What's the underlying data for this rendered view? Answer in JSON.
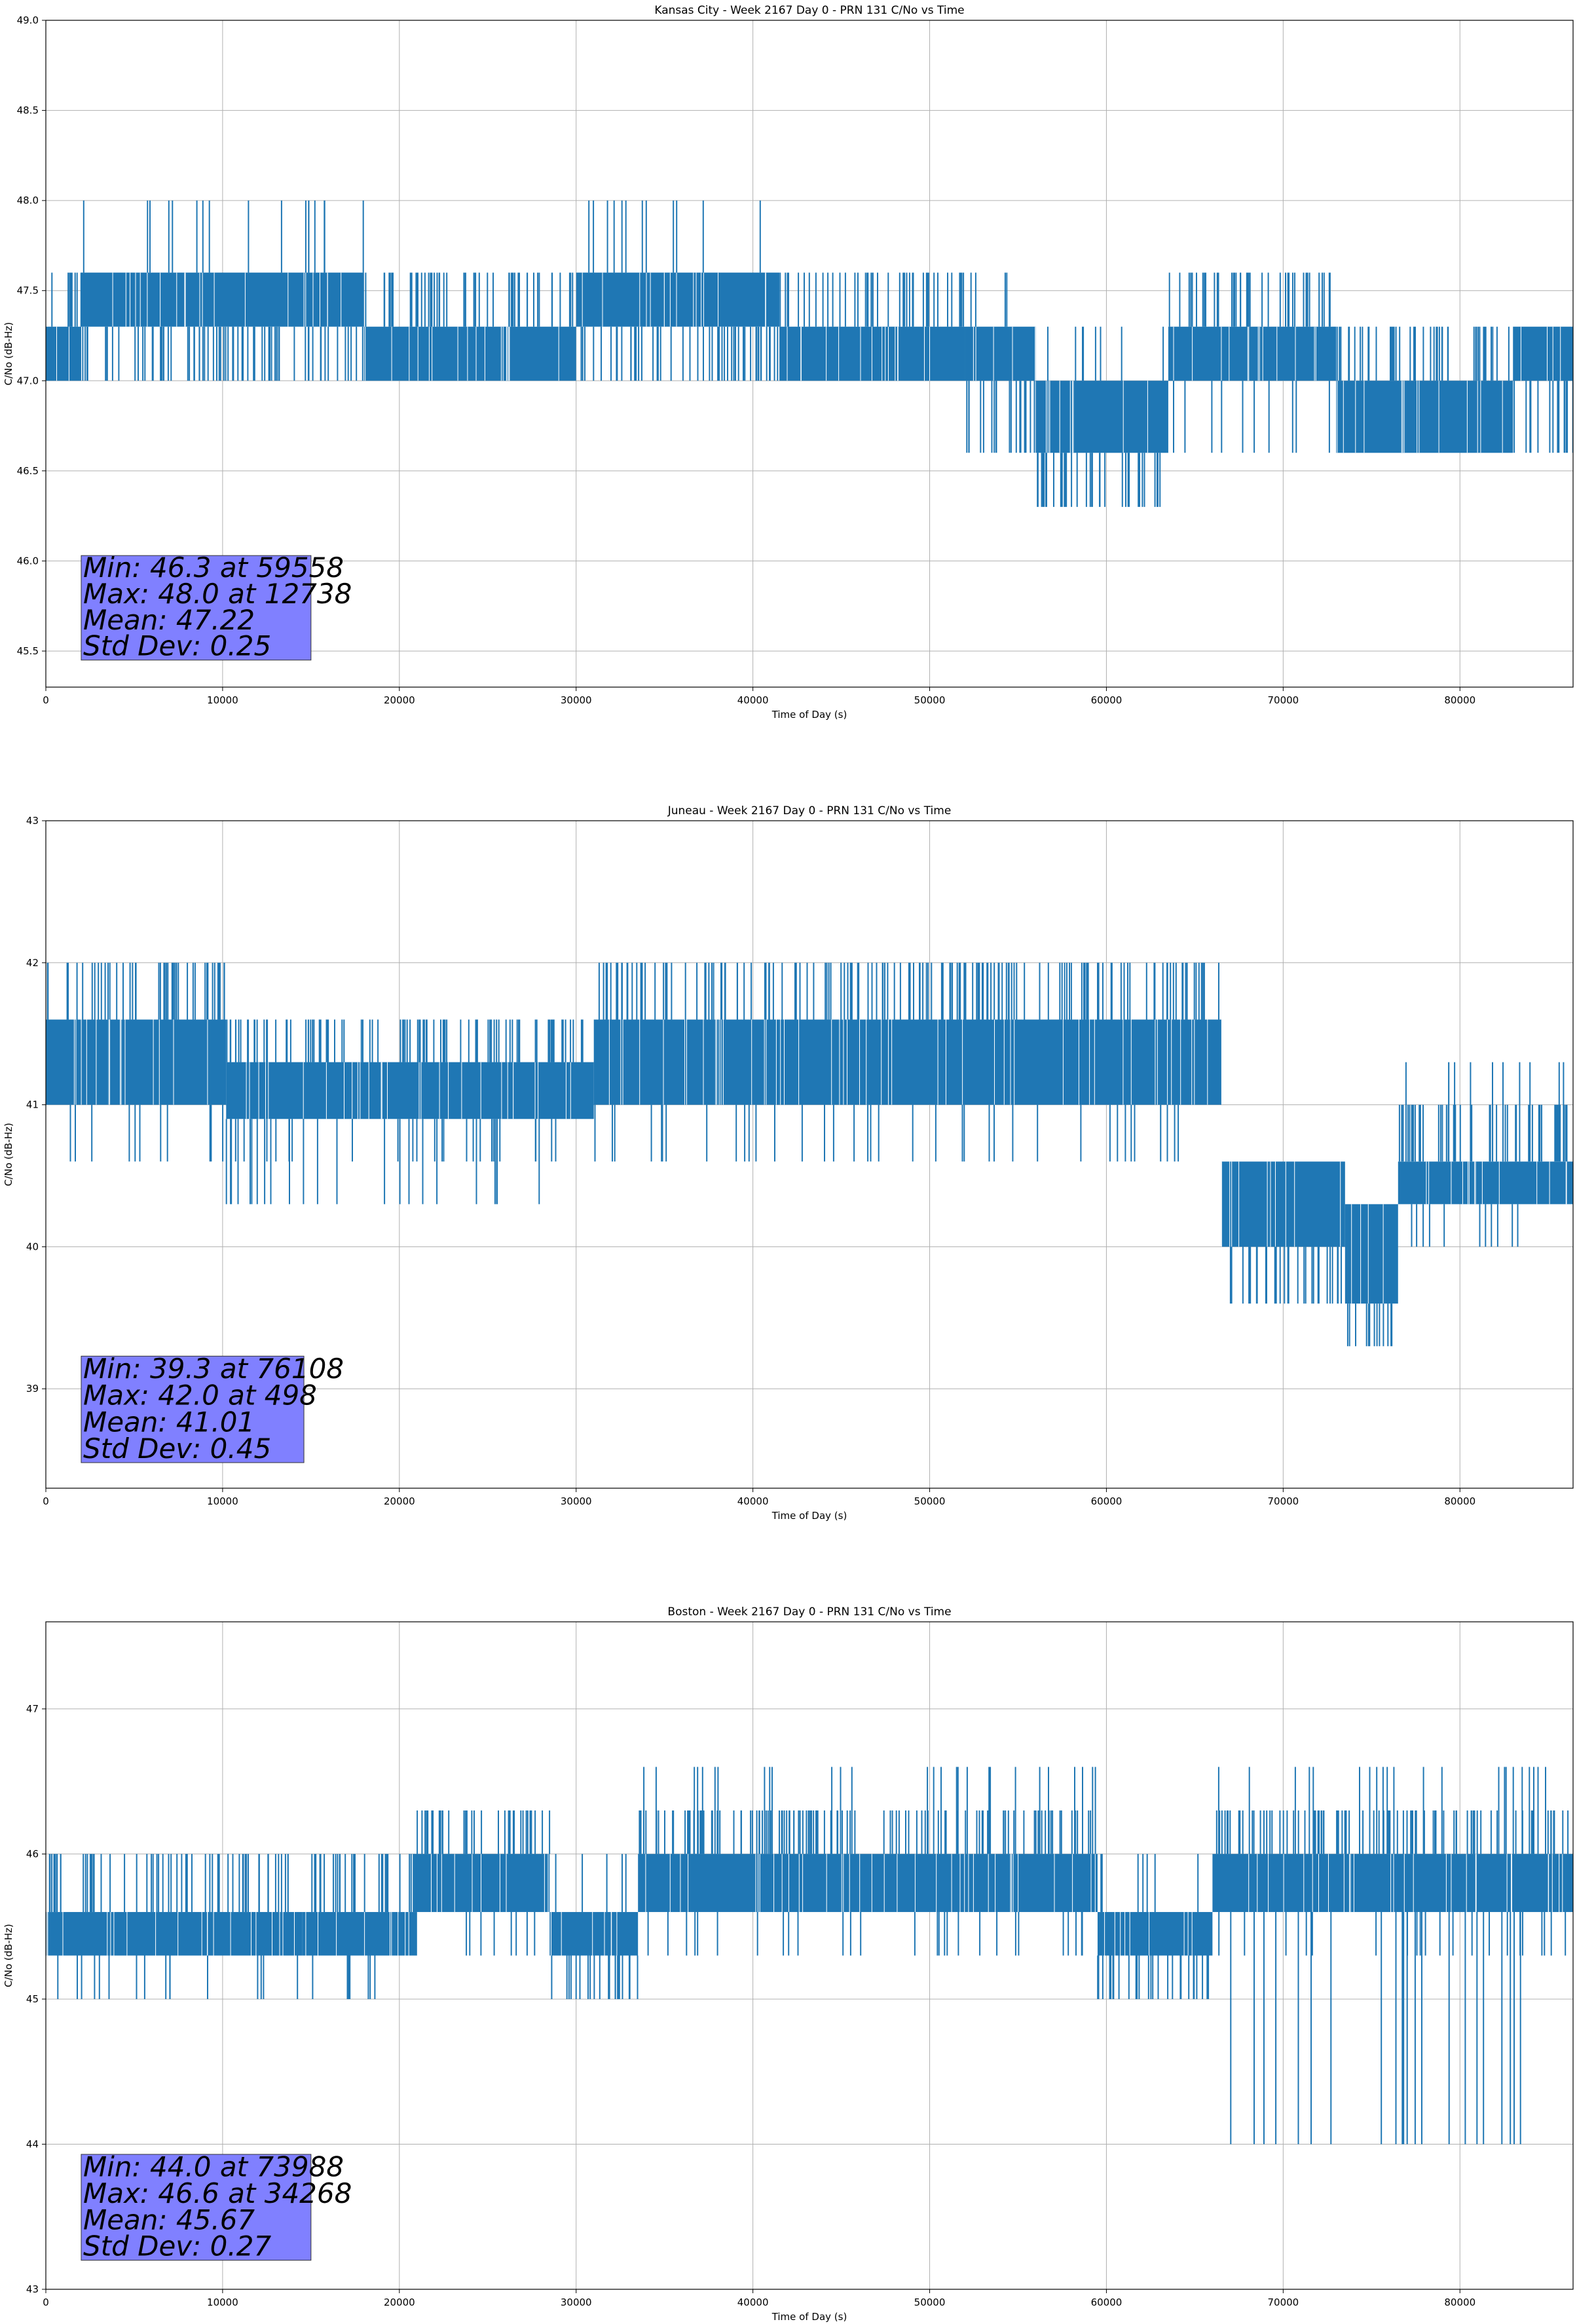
{
  "colors": {
    "series": "#1f77b4",
    "statbox": "#8080ff",
    "grid": "#b0b0b0"
  },
  "chart_data": [
    {
      "type": "line",
      "title": "Kansas City - Week 2167 Day 0 - PRN 131 C/No vs Time",
      "xlabel": "Time of Day (s)",
      "ylabel": "C/No (dB-Hz)",
      "xlim": [
        0,
        86400
      ],
      "ylim": [
        45.3,
        49.0
      ],
      "xticks": [
        0,
        10000,
        20000,
        30000,
        40000,
        50000,
        60000,
        70000,
        80000
      ],
      "yticks": [
        "45.5",
        "46.0",
        "46.5",
        "47.0",
        "47.5",
        "48.0",
        "48.5",
        "49.0"
      ],
      "grid": true,
      "series": [
        {
          "name": "C/No",
          "segments": [
            {
              "x0": 0,
              "x1": 2000,
              "low": 47.0,
              "high": 47.3,
              "sparse": [
                47.6
              ]
            },
            {
              "x0": 2000,
              "x1": 18000,
              "low": 47.3,
              "high": 47.6,
              "sparse": [
                47.0,
                48.0
              ]
            },
            {
              "x0": 18000,
              "x1": 30000,
              "low": 47.0,
              "high": 47.3,
              "sparse": [
                47.6
              ]
            },
            {
              "x0": 30000,
              "x1": 41500,
              "low": 47.3,
              "high": 47.6,
              "sparse": [
                47.0,
                48.0
              ]
            },
            {
              "x0": 41500,
              "x1": 52000,
              "low": 47.0,
              "high": 47.3,
              "sparse": [
                47.6
              ]
            },
            {
              "x0": 52000,
              "x1": 56000,
              "low": 47.0,
              "high": 47.3,
              "sparse": [
                46.6,
                47.6
              ]
            },
            {
              "x0": 56000,
              "x1": 63500,
              "low": 46.6,
              "high": 47.0,
              "sparse": [
                46.3,
                47.3
              ]
            },
            {
              "x0": 63500,
              "x1": 73000,
              "low": 47.0,
              "high": 47.3,
              "sparse": [
                47.6,
                46.6
              ]
            },
            {
              "x0": 73000,
              "x1": 83000,
              "low": 46.6,
              "high": 47.0,
              "sparse": [
                47.3
              ]
            },
            {
              "x0": 83000,
              "x1": 86400,
              "low": 47.0,
              "high": 47.3,
              "sparse": [
                46.6
              ]
            }
          ]
        }
      ],
      "stats": {
        "min": "Min: 46.3 at 59558",
        "max": "Max: 48.0 at 12738",
        "mean": "Mean: 47.22",
        "std": "Std Dev: 0.25"
      },
      "statbox": {
        "x0": 2000,
        "x1": 15000,
        "y0": 45.45,
        "y1": 46.03
      }
    },
    {
      "type": "line",
      "title": "Juneau - Week 2167 Day 0 - PRN 131 C/No vs Time",
      "xlabel": "Time of Day (s)",
      "ylabel": "C/No (dB-Hz)",
      "xlim": [
        0,
        86400
      ],
      "ylim": [
        38.3,
        43.0
      ],
      "xticks": [
        0,
        10000,
        20000,
        30000,
        40000,
        50000,
        60000,
        70000,
        80000
      ],
      "yticks": [
        "39",
        "40",
        "41",
        "42",
        "43"
      ],
      "grid": true,
      "series": [
        {
          "name": "C/No",
          "segments": [
            {
              "x0": 0,
              "x1": 10200,
              "low": 41.0,
              "high": 41.6,
              "sparse": [
                42.0,
                40.6
              ]
            },
            {
              "x0": 10200,
              "x1": 31000,
              "low": 40.9,
              "high": 41.3,
              "sparse": [
                41.6,
                40.6,
                40.3
              ]
            },
            {
              "x0": 31000,
              "x1": 66500,
              "low": 41.0,
              "high": 41.6,
              "sparse": [
                42.0,
                40.6
              ]
            },
            {
              "x0": 66500,
              "x1": 73500,
              "low": 40.0,
              "high": 40.6,
              "sparse": [
                39.6
              ]
            },
            {
              "x0": 73500,
              "x1": 76500,
              "low": 39.6,
              "high": 40.3,
              "sparse": [
                39.3
              ]
            },
            {
              "x0": 76500,
              "x1": 86400,
              "low": 40.3,
              "high": 40.6,
              "sparse": [
                41.0,
                41.3,
                40.0
              ]
            }
          ]
        }
      ],
      "stats": {
        "min": "Min: 39.3 at 76108",
        "max": "Max: 42.0 at 498",
        "mean": "Mean: 41.01",
        "std": "Std Dev: 0.45"
      },
      "statbox": {
        "x0": 2000,
        "x1": 14600,
        "y0": 38.48,
        "y1": 39.23
      }
    },
    {
      "type": "line",
      "title": "Boston - Week 2167 Day 0 - PRN 131 C/No vs Time",
      "xlabel": "Time of Day (s)",
      "ylabel": "C/No (dB-Hz)",
      "xlim": [
        0,
        86400
      ],
      "ylim": [
        43.0,
        47.6
      ],
      "xticks": [
        0,
        10000,
        20000,
        30000,
        40000,
        50000,
        60000,
        70000,
        80000
      ],
      "yticks": [
        "43",
        "44",
        "45",
        "46",
        "47"
      ],
      "grid": true,
      "series": [
        {
          "name": "C/No",
          "segments": [
            {
              "x0": 0,
              "x1": 14500,
              "low": 45.3,
              "high": 45.6,
              "sparse": [
                46.0,
                45.0
              ]
            },
            {
              "x0": 14500,
              "x1": 21000,
              "low": 45.3,
              "high": 45.6,
              "sparse": [
                46.0,
                45.0
              ]
            },
            {
              "x0": 21000,
              "x1": 28500,
              "low": 45.6,
              "high": 46.0,
              "sparse": [
                46.3,
                45.3
              ]
            },
            {
              "x0": 28500,
              "x1": 33500,
              "low": 45.3,
              "high": 45.6,
              "sparse": [
                45.0,
                46.0
              ]
            },
            {
              "x0": 33500,
              "x1": 59500,
              "low": 45.6,
              "high": 46.0,
              "sparse": [
                46.3,
                46.6,
                45.3
              ]
            },
            {
              "x0": 59500,
              "x1": 66000,
              "low": 45.3,
              "high": 45.6,
              "sparse": [
                45.0,
                46.0
              ]
            },
            {
              "x0": 66000,
              "x1": 86400,
              "low": 45.6,
              "high": 46.0,
              "sparse": [
                46.3,
                45.3,
                44.0,
                46.6
              ]
            }
          ]
        }
      ],
      "stats": {
        "min": "Min: 44.0 at 73988",
        "max": "Max: 46.6 at 34268",
        "mean": "Mean: 45.67",
        "std": "Std Dev: 0.27"
      },
      "statbox": {
        "x0": 2000,
        "x1": 15000,
        "y0": 43.2,
        "y1": 43.93
      }
    }
  ]
}
